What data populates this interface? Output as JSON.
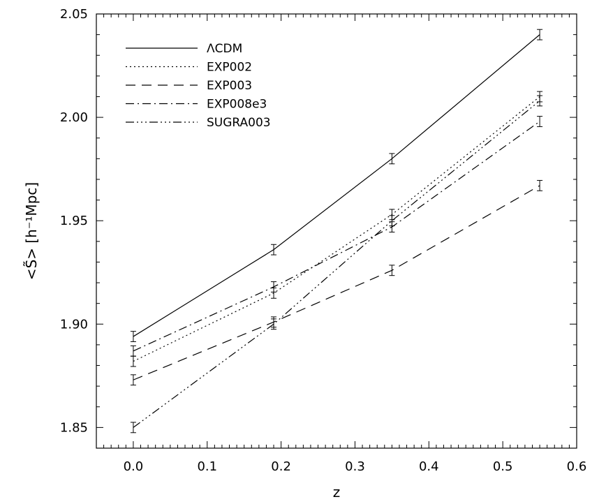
{
  "chart_data": {
    "type": "line",
    "xlabel": "z",
    "ylabel": "<S̃> [h⁻¹Mpc]",
    "xlim": [
      -0.05,
      0.6
    ],
    "ylim": [
      1.84,
      2.05
    ],
    "x_ticks": [
      0.0,
      0.1,
      0.2,
      0.3,
      0.4,
      0.5,
      0.6
    ],
    "x_tick_labels": [
      "0.0",
      "0.1",
      "0.2",
      "0.3",
      "0.4",
      "0.5",
      "0.6"
    ],
    "y_ticks": [
      1.85,
      1.9,
      1.95,
      2.0,
      2.05
    ],
    "y_tick_labels": [
      "1.85",
      "1.90",
      "1.95",
      "2.00",
      "2.05"
    ],
    "grid": false,
    "legend_position": "top-left",
    "x": [
      0.0,
      0.19,
      0.35,
      0.55
    ],
    "series": [
      {
        "name": "ΛCDM",
        "line_style": "solid",
        "values": [
          1.894,
          1.936,
          1.98,
          2.04
        ],
        "errors": [
          0.0025,
          0.0025,
          0.0025,
          0.0025
        ]
      },
      {
        "name": "EXP002",
        "line_style": "dotted",
        "values": [
          1.882,
          1.915,
          1.953,
          2.01
        ],
        "errors": [
          0.0025,
          0.0025,
          0.0025,
          0.0025
        ]
      },
      {
        "name": "EXP003",
        "line_style": "dashed",
        "values": [
          1.873,
          1.901,
          1.926,
          1.967
        ],
        "errors": [
          0.0025,
          0.0025,
          0.0025,
          0.0025
        ]
      },
      {
        "name": "EXP008e3",
        "line_style": "dash-dot",
        "values": [
          1.887,
          1.918,
          1.947,
          1.998
        ],
        "errors": [
          0.0025,
          0.0025,
          0.0025,
          0.0025
        ]
      },
      {
        "name": "SUGRA003",
        "line_style": "dash-dot-dot",
        "values": [
          1.85,
          1.9,
          1.95,
          2.008
        ],
        "errors": [
          0.0025,
          0.0025,
          0.0025,
          0.0025
        ]
      }
    ]
  }
}
